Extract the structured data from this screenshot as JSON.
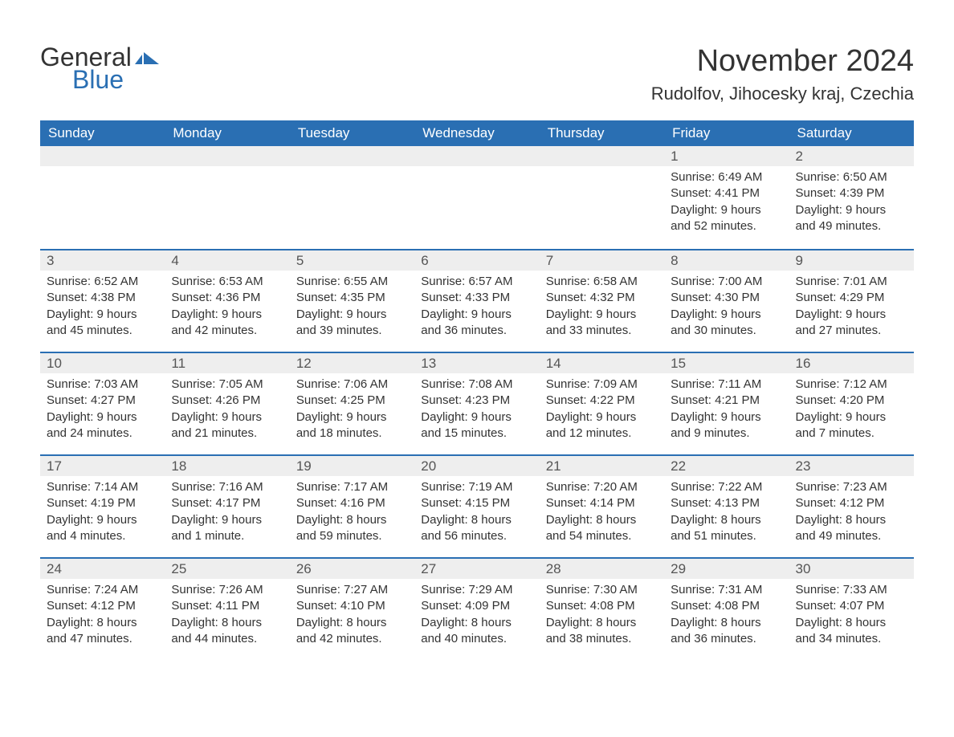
{
  "logo": {
    "text1": "General",
    "text2": "Blue",
    "icon_color": "#2a6fb3"
  },
  "title": "November 2024",
  "location": "Rudolfov, Jihocesky kraj, Czechia",
  "colors": {
    "header_bg": "#2a6fb3",
    "header_text": "#ffffff",
    "daynum_bg": "#eeeeee",
    "row_border": "#2a6fb3",
    "body_text": "#333333",
    "background": "#ffffff"
  },
  "fonts": {
    "title_size": 38,
    "location_size": 22,
    "day_header_size": 17,
    "daynum_size": 17,
    "body_size": 15
  },
  "day_headers": [
    "Sunday",
    "Monday",
    "Tuesday",
    "Wednesday",
    "Thursday",
    "Friday",
    "Saturday"
  ],
  "weeks": [
    [
      {
        "blank": true
      },
      {
        "blank": true
      },
      {
        "blank": true
      },
      {
        "blank": true
      },
      {
        "blank": true
      },
      {
        "n": "1",
        "sunrise": "Sunrise: 6:49 AM",
        "sunset": "Sunset: 4:41 PM",
        "daylight": "Daylight: 9 hours and 52 minutes."
      },
      {
        "n": "2",
        "sunrise": "Sunrise: 6:50 AM",
        "sunset": "Sunset: 4:39 PM",
        "daylight": "Daylight: 9 hours and 49 minutes."
      }
    ],
    [
      {
        "n": "3",
        "sunrise": "Sunrise: 6:52 AM",
        "sunset": "Sunset: 4:38 PM",
        "daylight": "Daylight: 9 hours and 45 minutes."
      },
      {
        "n": "4",
        "sunrise": "Sunrise: 6:53 AM",
        "sunset": "Sunset: 4:36 PM",
        "daylight": "Daylight: 9 hours and 42 minutes."
      },
      {
        "n": "5",
        "sunrise": "Sunrise: 6:55 AM",
        "sunset": "Sunset: 4:35 PM",
        "daylight": "Daylight: 9 hours and 39 minutes."
      },
      {
        "n": "6",
        "sunrise": "Sunrise: 6:57 AM",
        "sunset": "Sunset: 4:33 PM",
        "daylight": "Daylight: 9 hours and 36 minutes."
      },
      {
        "n": "7",
        "sunrise": "Sunrise: 6:58 AM",
        "sunset": "Sunset: 4:32 PM",
        "daylight": "Daylight: 9 hours and 33 minutes."
      },
      {
        "n": "8",
        "sunrise": "Sunrise: 7:00 AM",
        "sunset": "Sunset: 4:30 PM",
        "daylight": "Daylight: 9 hours and 30 minutes."
      },
      {
        "n": "9",
        "sunrise": "Sunrise: 7:01 AM",
        "sunset": "Sunset: 4:29 PM",
        "daylight": "Daylight: 9 hours and 27 minutes."
      }
    ],
    [
      {
        "n": "10",
        "sunrise": "Sunrise: 7:03 AM",
        "sunset": "Sunset: 4:27 PM",
        "daylight": "Daylight: 9 hours and 24 minutes."
      },
      {
        "n": "11",
        "sunrise": "Sunrise: 7:05 AM",
        "sunset": "Sunset: 4:26 PM",
        "daylight": "Daylight: 9 hours and 21 minutes."
      },
      {
        "n": "12",
        "sunrise": "Sunrise: 7:06 AM",
        "sunset": "Sunset: 4:25 PM",
        "daylight": "Daylight: 9 hours and 18 minutes."
      },
      {
        "n": "13",
        "sunrise": "Sunrise: 7:08 AM",
        "sunset": "Sunset: 4:23 PM",
        "daylight": "Daylight: 9 hours and 15 minutes."
      },
      {
        "n": "14",
        "sunrise": "Sunrise: 7:09 AM",
        "sunset": "Sunset: 4:22 PM",
        "daylight": "Daylight: 9 hours and 12 minutes."
      },
      {
        "n": "15",
        "sunrise": "Sunrise: 7:11 AM",
        "sunset": "Sunset: 4:21 PM",
        "daylight": "Daylight: 9 hours and 9 minutes."
      },
      {
        "n": "16",
        "sunrise": "Sunrise: 7:12 AM",
        "sunset": "Sunset: 4:20 PM",
        "daylight": "Daylight: 9 hours and 7 minutes."
      }
    ],
    [
      {
        "n": "17",
        "sunrise": "Sunrise: 7:14 AM",
        "sunset": "Sunset: 4:19 PM",
        "daylight": "Daylight: 9 hours and 4 minutes."
      },
      {
        "n": "18",
        "sunrise": "Sunrise: 7:16 AM",
        "sunset": "Sunset: 4:17 PM",
        "daylight": "Daylight: 9 hours and 1 minute."
      },
      {
        "n": "19",
        "sunrise": "Sunrise: 7:17 AM",
        "sunset": "Sunset: 4:16 PM",
        "daylight": "Daylight: 8 hours and 59 minutes."
      },
      {
        "n": "20",
        "sunrise": "Sunrise: 7:19 AM",
        "sunset": "Sunset: 4:15 PM",
        "daylight": "Daylight: 8 hours and 56 minutes."
      },
      {
        "n": "21",
        "sunrise": "Sunrise: 7:20 AM",
        "sunset": "Sunset: 4:14 PM",
        "daylight": "Daylight: 8 hours and 54 minutes."
      },
      {
        "n": "22",
        "sunrise": "Sunrise: 7:22 AM",
        "sunset": "Sunset: 4:13 PM",
        "daylight": "Daylight: 8 hours and 51 minutes."
      },
      {
        "n": "23",
        "sunrise": "Sunrise: 7:23 AM",
        "sunset": "Sunset: 4:12 PM",
        "daylight": "Daylight: 8 hours and 49 minutes."
      }
    ],
    [
      {
        "n": "24",
        "sunrise": "Sunrise: 7:24 AM",
        "sunset": "Sunset: 4:12 PM",
        "daylight": "Daylight: 8 hours and 47 minutes."
      },
      {
        "n": "25",
        "sunrise": "Sunrise: 7:26 AM",
        "sunset": "Sunset: 4:11 PM",
        "daylight": "Daylight: 8 hours and 44 minutes."
      },
      {
        "n": "26",
        "sunrise": "Sunrise: 7:27 AM",
        "sunset": "Sunset: 4:10 PM",
        "daylight": "Daylight: 8 hours and 42 minutes."
      },
      {
        "n": "27",
        "sunrise": "Sunrise: 7:29 AM",
        "sunset": "Sunset: 4:09 PM",
        "daylight": "Daylight: 8 hours and 40 minutes."
      },
      {
        "n": "28",
        "sunrise": "Sunrise: 7:30 AM",
        "sunset": "Sunset: 4:08 PM",
        "daylight": "Daylight: 8 hours and 38 minutes."
      },
      {
        "n": "29",
        "sunrise": "Sunrise: 7:31 AM",
        "sunset": "Sunset: 4:08 PM",
        "daylight": "Daylight: 8 hours and 36 minutes."
      },
      {
        "n": "30",
        "sunrise": "Sunrise: 7:33 AM",
        "sunset": "Sunset: 4:07 PM",
        "daylight": "Daylight: 8 hours and 34 minutes."
      }
    ]
  ]
}
